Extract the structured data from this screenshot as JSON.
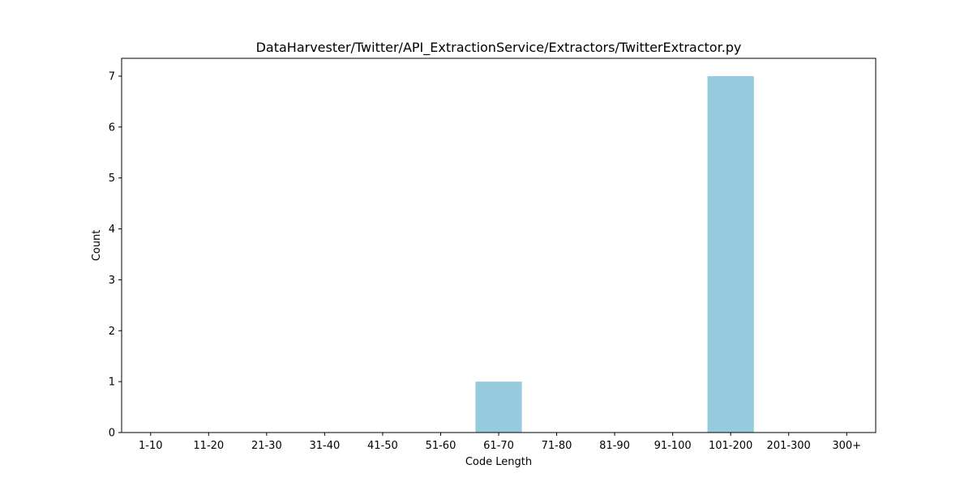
{
  "chart_data": {
    "type": "bar",
    "title": "DataHarvester/Twitter/API_ExtractionService/Extractors/TwitterExtractor.py",
    "xlabel": "Code Length",
    "ylabel": "Count",
    "categories": [
      "1-10",
      "11-20",
      "21-30",
      "31-40",
      "41-50",
      "51-60",
      "61-70",
      "71-80",
      "81-90",
      "91-100",
      "101-200",
      "201-300",
      "300+"
    ],
    "values": [
      0,
      0,
      0,
      0,
      0,
      0,
      1,
      0,
      0,
      0,
      7,
      0,
      0
    ],
    "ylim": [
      0,
      7.35
    ],
    "yticks": [
      0,
      1,
      2,
      3,
      4,
      5,
      6,
      7
    ],
    "bar_color": "#96cbdd",
    "grid": false,
    "legend": "none"
  }
}
